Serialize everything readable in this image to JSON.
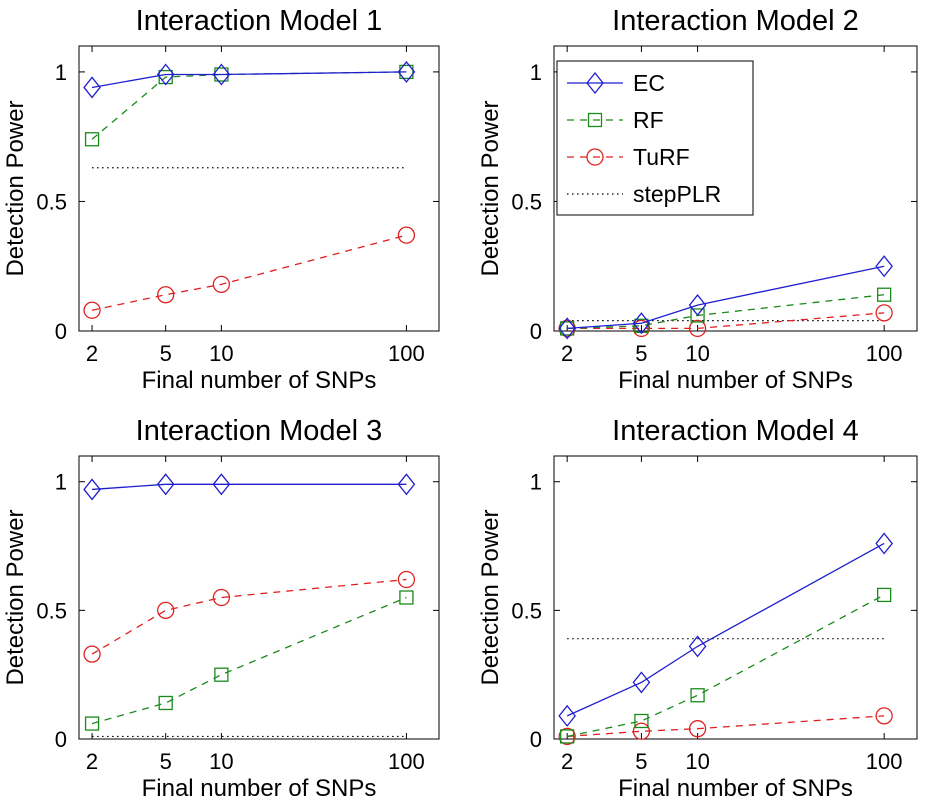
{
  "chart_data": [
    {
      "type": "line",
      "title": "Interaction Model 1",
      "xlabel": "Final number of SNPs",
      "ylabel": "Detection Power",
      "x_scale": "log",
      "xlim": [
        1.7,
        150
      ],
      "ylim": [
        0,
        1.1
      ],
      "xticks": [
        "2",
        "5",
        "10",
        "100"
      ],
      "yticks": [
        "0",
        "0.5",
        "1"
      ],
      "x": [
        2,
        5,
        10,
        100
      ],
      "grid": false,
      "legend": false,
      "series": [
        {
          "name": "EC",
          "values": [
            0.94,
            0.99,
            0.99,
            1.0
          ]
        },
        {
          "name": "RF",
          "values": [
            0.74,
            0.98,
            0.99,
            1.0
          ]
        },
        {
          "name": "TuRF",
          "values": [
            0.08,
            0.14,
            0.18,
            0.37
          ]
        },
        {
          "name": "stepPLR",
          "values": [
            0.63,
            0.63,
            0.63,
            0.63
          ]
        }
      ]
    },
    {
      "type": "line",
      "title": "Interaction Model 2",
      "xlabel": "Final number of SNPs",
      "ylabel": "Detection Power",
      "x_scale": "log",
      "xlim": [
        1.7,
        150
      ],
      "ylim": [
        0,
        1.1
      ],
      "xticks": [
        "2",
        "5",
        "10",
        "100"
      ],
      "yticks": [
        "0",
        "0.5",
        "1"
      ],
      "x": [
        2,
        5,
        10,
        100
      ],
      "grid": false,
      "legend": "top-left",
      "series": [
        {
          "name": "EC",
          "values": [
            0.01,
            0.03,
            0.1,
            0.25
          ]
        },
        {
          "name": "RF",
          "values": [
            0.01,
            0.02,
            0.06,
            0.14
          ]
        },
        {
          "name": "TuRF",
          "values": [
            0.01,
            0.01,
            0.01,
            0.07
          ]
        },
        {
          "name": "stepPLR",
          "values": [
            0.04,
            0.04,
            0.04,
            0.04
          ]
        }
      ]
    },
    {
      "type": "line",
      "title": "Interaction Model 3",
      "xlabel": "Final number of SNPs",
      "ylabel": "Detection Power",
      "x_scale": "log",
      "xlim": [
        1.7,
        150
      ],
      "ylim": [
        0,
        1.1
      ],
      "xticks": [
        "2",
        "5",
        "10",
        "100"
      ],
      "yticks": [
        "0",
        "0.5",
        "1"
      ],
      "x": [
        2,
        5,
        10,
        100
      ],
      "grid": false,
      "legend": false,
      "series": [
        {
          "name": "EC",
          "values": [
            0.97,
            0.99,
            0.99,
            0.99
          ]
        },
        {
          "name": "RF",
          "values": [
            0.06,
            0.14,
            0.25,
            0.55
          ]
        },
        {
          "name": "TuRF",
          "values": [
            0.33,
            0.5,
            0.55,
            0.62
          ]
        },
        {
          "name": "stepPLR",
          "values": [
            0.01,
            0.01,
            0.01,
            0.01
          ]
        }
      ]
    },
    {
      "type": "line",
      "title": "Interaction Model 4",
      "xlabel": "Final number of SNPs",
      "ylabel": "Detection Power",
      "x_scale": "log",
      "xlim": [
        1.7,
        150
      ],
      "ylim": [
        0,
        1.1
      ],
      "xticks": [
        "2",
        "5",
        "10",
        "100"
      ],
      "yticks": [
        "0",
        "0.5",
        "1"
      ],
      "x": [
        2,
        5,
        10,
        100
      ],
      "grid": false,
      "legend": false,
      "series": [
        {
          "name": "EC",
          "values": [
            0.09,
            0.22,
            0.36,
            0.76
          ]
        },
        {
          "name": "RF",
          "values": [
            0.01,
            0.07,
            0.17,
            0.56
          ]
        },
        {
          "name": "TuRF",
          "values": [
            0.01,
            0.03,
            0.04,
            0.09
          ]
        },
        {
          "name": "stepPLR",
          "values": [
            0.39,
            0.39,
            0.39,
            0.39
          ]
        }
      ]
    }
  ],
  "styles": {
    "EC": {
      "color": "#1f1fd0",
      "dash": "none",
      "marker": "diamond"
    },
    "RF": {
      "color": "#1a8a1a",
      "dash": "7,6",
      "marker": "square"
    },
    "TuRF": {
      "color": "#e02020",
      "dash": "7,6",
      "marker": "circle"
    },
    "stepPLR": {
      "color": "#000000",
      "dash": "1.5,3.5",
      "marker": "none"
    }
  }
}
